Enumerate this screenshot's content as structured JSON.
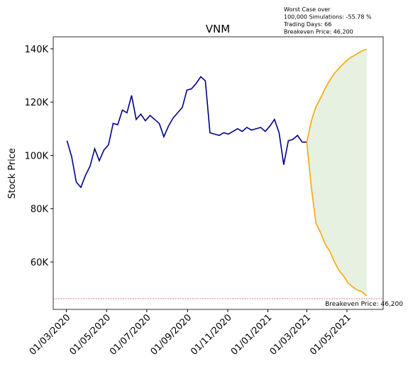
{
  "chart_data": {
    "type": "line",
    "title": "VNM",
    "ylabel": "Stock Price",
    "annotation": [
      "Worst Case over",
      "100,000 Simulations: -55.78 %",
      "Trading Days: 66",
      "Breakeven Price: 46,200"
    ],
    "breakeven": {
      "value": 46200,
      "label": "Breakeven Price: 46,200",
      "color": "#d62728"
    },
    "fill_color": "#e3efdf",
    "x": [
      "2020-03-02",
      "2020-03-09",
      "2020-03-16",
      "2020-03-23",
      "2020-03-30",
      "2020-04-06",
      "2020-04-13",
      "2020-04-20",
      "2020-04-27",
      "2020-05-04",
      "2020-05-11",
      "2020-05-18",
      "2020-05-25",
      "2020-06-01",
      "2020-06-08",
      "2020-06-15",
      "2020-06-22",
      "2020-06-29",
      "2020-07-06",
      "2020-07-13",
      "2020-07-20",
      "2020-07-27",
      "2020-08-03",
      "2020-08-10",
      "2020-08-17",
      "2020-08-24",
      "2020-08-31",
      "2020-09-07",
      "2020-09-14",
      "2020-09-21",
      "2020-09-28",
      "2020-10-05",
      "2020-10-12",
      "2020-10-19",
      "2020-10-26",
      "2020-11-02",
      "2020-11-09",
      "2020-11-16",
      "2020-11-23",
      "2020-11-30",
      "2020-12-07",
      "2020-12-14",
      "2020-12-21",
      "2020-12-28",
      "2021-01-04",
      "2021-01-11",
      "2021-01-18",
      "2021-01-25",
      "2021-02-01",
      "2021-02-08",
      "2021-02-15",
      "2021-02-22",
      "2021-03-01",
      "2021-03-08",
      "2021-03-15",
      "2021-03-22",
      "2021-03-29",
      "2021-04-05",
      "2021-04-12",
      "2021-04-19",
      "2021-04-26",
      "2021-05-03",
      "2021-05-10",
      "2021-05-17",
      "2021-05-24",
      "2021-05-31"
    ],
    "series": [
      {
        "color": "#00008b",
        "values": [
          105500,
          99500,
          90000,
          88000,
          92500,
          96000,
          102500,
          98000,
          102000,
          104000,
          112000,
          111500,
          117000,
          116000,
          122500,
          113500,
          115500,
          113000,
          115000,
          113500,
          112000,
          107000,
          111000,
          114000,
          116000,
          118000,
          124500,
          125000,
          127000,
          129500,
          128000,
          108500,
          108000,
          107500,
          108500,
          108000,
          109000,
          110000,
          109000,
          110500,
          109500,
          110000,
          110500,
          109000,
          111000,
          113500,
          108500,
          96500,
          105500,
          106000,
          107500,
          105000,
          105000,
          null,
          null,
          null,
          null,
          null,
          null,
          null,
          null,
          null,
          null,
          null,
          null,
          null
        ]
      },
      {
        "color": "#ffa500",
        "values": [
          null,
          null,
          null,
          null,
          null,
          null,
          null,
          null,
          null,
          null,
          null,
          null,
          null,
          null,
          null,
          null,
          null,
          null,
          null,
          null,
          null,
          null,
          null,
          null,
          null,
          null,
          null,
          null,
          null,
          null,
          null,
          null,
          null,
          null,
          null,
          null,
          null,
          null,
          null,
          null,
          null,
          null,
          null,
          null,
          null,
          null,
          null,
          null,
          null,
          null,
          null,
          null,
          105000,
          113000,
          118300,
          121500,
          125200,
          128200,
          130800,
          132700,
          134500,
          136100,
          137200,
          138200,
          139300,
          139800
        ]
      },
      {
        "color": "#ffa500",
        "values": [
          null,
          null,
          null,
          null,
          null,
          null,
          null,
          null,
          null,
          null,
          null,
          null,
          null,
          null,
          null,
          null,
          null,
          null,
          null,
          null,
          null,
          null,
          null,
          null,
          null,
          null,
          null,
          null,
          null,
          null,
          null,
          null,
          null,
          null,
          null,
          null,
          null,
          null,
          null,
          null,
          null,
          null,
          null,
          null,
          null,
          null,
          null,
          null,
          null,
          null,
          null,
          null,
          105000,
          87800,
          74500,
          71000,
          66600,
          64000,
          60000,
          56800,
          54700,
          52000,
          50600,
          49400,
          48800,
          47200
        ]
      }
    ],
    "xlim": [
      "2020-02-10",
      "2021-06-25"
    ],
    "xticks": [
      {
        "value": "2020-03-01",
        "label": "01/03/2020"
      },
      {
        "value": "2020-05-01",
        "label": "01/05/2020"
      },
      {
        "value": "2020-07-01",
        "label": "01/07/2020"
      },
      {
        "value": "2020-09-01",
        "label": "01/09/2020"
      },
      {
        "value": "2020-11-01",
        "label": "01/11/2020"
      },
      {
        "value": "2021-01-01",
        "label": "01/01/2021"
      },
      {
        "value": "2021-03-01",
        "label": "01/03/2021"
      },
      {
        "value": "2021-05-01",
        "label": "01/05/2021"
      }
    ],
    "ylim": [
      42200,
      144500
    ],
    "yticks": [
      {
        "value": 60000,
        "label": "60K"
      },
      {
        "value": 80000,
        "label": "80K"
      },
      {
        "value": 100000,
        "label": "100K"
      },
      {
        "value": 120000,
        "label": "120K"
      },
      {
        "value": 140000,
        "label": "140K"
      }
    ]
  }
}
